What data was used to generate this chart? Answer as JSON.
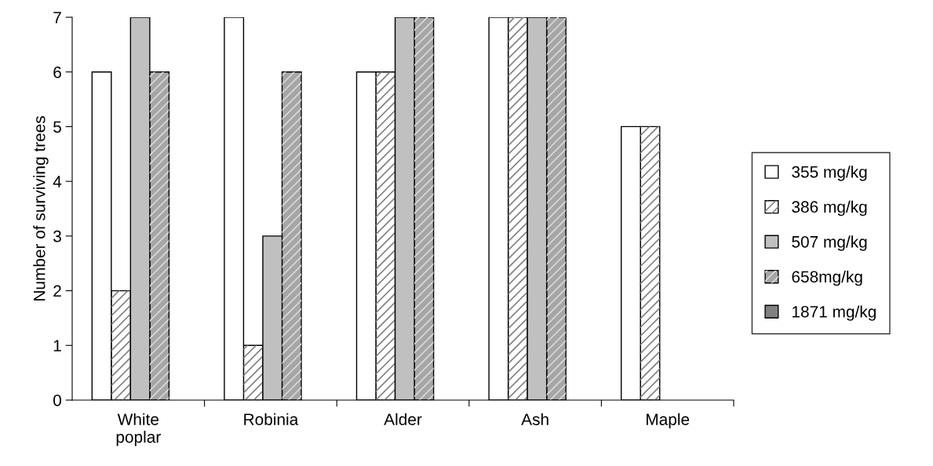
{
  "chart_data": {
    "type": "bar",
    "ylabel": "Number of surviving trees",
    "categories": [
      "White\npoplar",
      "Robinia",
      "Alder",
      "Ash",
      "Maple"
    ],
    "series": [
      {
        "name": "355 mg/kg",
        "color": "#ffffff",
        "values": [
          6,
          7,
          6,
          7,
          5
        ]
      },
      {
        "name": "386 mg/kg",
        "color": "#ffffff",
        "values": [
          2,
          1,
          6,
          7,
          5
        ]
      },
      {
        "name": "507 mg/kg",
        "color": "#c0c0c0",
        "values": [
          7,
          3,
          7,
          7,
          null
        ]
      },
      {
        "name": "658mg/kg",
        "color": "#a6a6a6",
        "values": [
          6,
          6,
          7,
          7,
          null
        ]
      },
      {
        "name": "1871 mg/kg",
        "color": "#808080",
        "values": [
          null,
          null,
          null,
          null,
          null
        ]
      }
    ],
    "ylim": [
      0,
      7
    ],
    "yticks": [
      0,
      1,
      2,
      3,
      4,
      5,
      6,
      7
    ],
    "grid": false,
    "legend": "right"
  }
}
